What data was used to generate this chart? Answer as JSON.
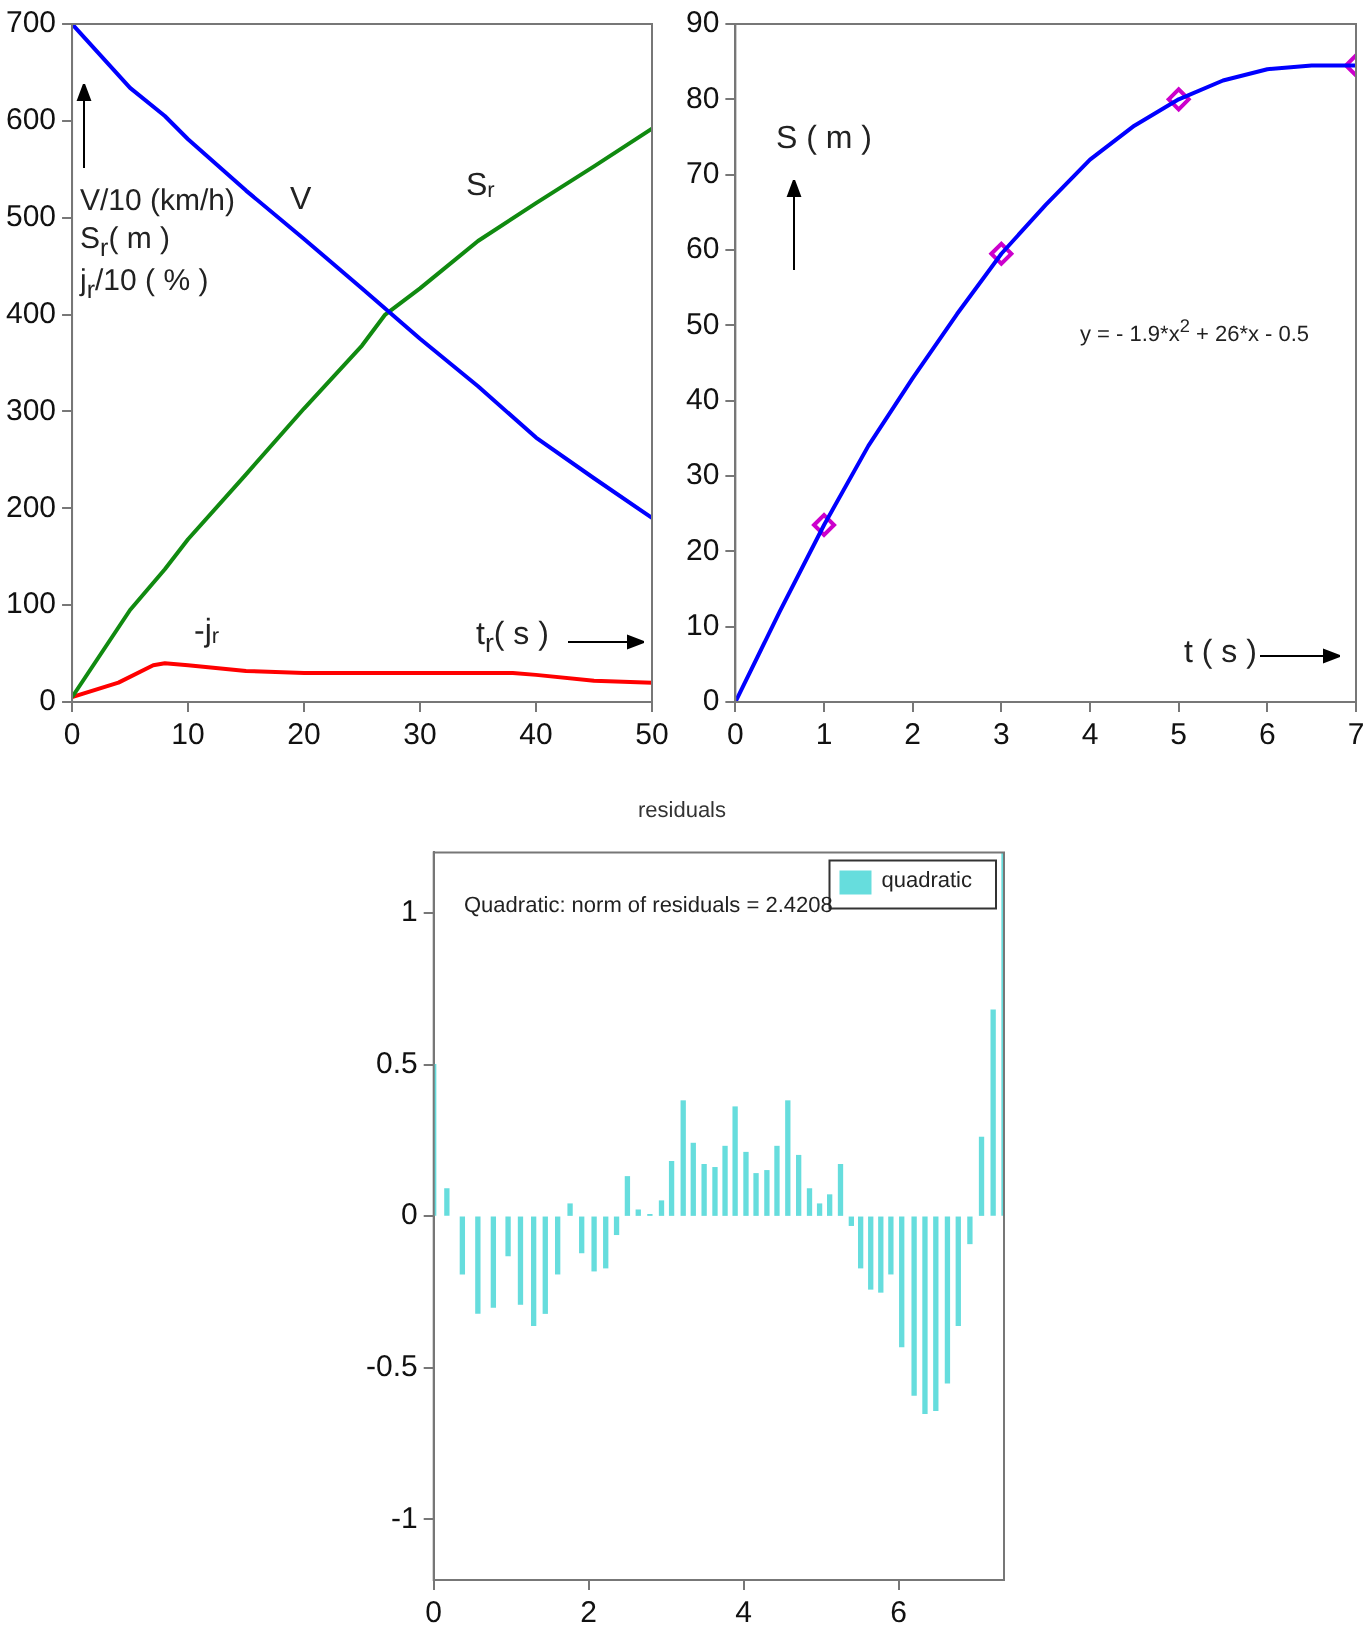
{
  "chart_data": [
    {
      "type": "line",
      "xlabel": "t$_{r}$( s )",
      "ylabel": "V/10 (km/h)\nS$_{r}$( m )\nj$_{r}$/10 ( % )",
      "xlim": [
        0,
        50
      ],
      "xticks": [
        0,
        10,
        20,
        30,
        40,
        50
      ],
      "ylim": [
        0,
        700
      ],
      "yticks": [
        0,
        100,
        200,
        300,
        400,
        500,
        600,
        700
      ],
      "grid": false,
      "marker": "none",
      "line_style": "solid",
      "series": [
        {
          "name": "V",
          "color": "#0000ff",
          "x": [
            0,
            5,
            8,
            10,
            15,
            20,
            25,
            30,
            35,
            40,
            45,
            50
          ],
          "values": [
            700,
            634,
            605,
            581,
            528,
            478,
            427,
            375,
            326,
            273,
            231,
            190
          ]
        },
        {
          "name": "S$_{r}$",
          "color": "#108a10",
          "x": [
            0,
            5,
            8,
            10,
            15,
            20,
            25,
            27,
            30,
            35,
            40,
            45,
            50
          ],
          "values": [
            5,
            95,
            137,
            168,
            235,
            303,
            368,
            400,
            427,
            476,
            515,
            553,
            592
          ]
        },
        {
          "name": "-j$_{r}$",
          "color": "#ff0000",
          "x": [
            0,
            4,
            7,
            8,
            10,
            15,
            20,
            30,
            38,
            40,
            45,
            50
          ],
          "values": [
            5,
            20,
            38,
            40,
            38,
            32,
            30,
            30,
            30,
            28,
            22,
            20
          ]
        }
      ]
    },
    {
      "type": "line",
      "xlabel": "t ( s )",
      "ylabel": "S ( m )",
      "annotations": [
        "y = - 1.9*x$^{2}$ + 26*x - 0.5"
      ],
      "xlim": [
        0,
        7
      ],
      "xticks": [
        0,
        1,
        2,
        3,
        4,
        5,
        6,
        7
      ],
      "ylim": [
        0,
        90
      ],
      "yticks": [
        0,
        10,
        20,
        30,
        40,
        50,
        60,
        70,
        80,
        90
      ],
      "grid": false,
      "series": [
        {
          "color": "#0000ff",
          "marker": "none",
          "x": [
            0,
            0.5,
            1,
            1.5,
            2,
            2.5,
            3,
            3.5,
            4,
            4.5,
            5,
            5.5,
            6,
            6.5,
            7
          ],
          "values": [
            0,
            12,
            23.5,
            34,
            43,
            51.5,
            59.5,
            66,
            72,
            76.5,
            80,
            82.5,
            84,
            84.5,
            84.5
          ]
        },
        {
          "type": "scatter",
          "color": "#cc00cc",
          "marker": "diamond",
          "x": [
            1,
            3,
            5,
            7
          ],
          "values": [
            23.5,
            59.5,
            80,
            84.5
          ]
        }
      ]
    },
    {
      "type": "bar",
      "title": "residuals",
      "annotations": [
        "Quadratic: norm of residuals = 2.4208"
      ],
      "legend": "top right",
      "grid": false,
      "xlim": [
        0,
        7.36
      ],
      "xticks": [
        0,
        2,
        4,
        6
      ],
      "ylim": [
        -1.2,
        1.2
      ],
      "yticks": [
        -1,
        -0.5,
        0,
        0.5,
        1
      ],
      "x": [
        0,
        0.17,
        0.37,
        0.57,
        0.77,
        0.96,
        1.12,
        1.29,
        1.44,
        1.6,
        1.76,
        1.91,
        2.07,
        2.22,
        2.36,
        2.5,
        2.64,
        2.79,
        2.94,
        3.07,
        3.22,
        3.35,
        3.49,
        3.63,
        3.76,
        3.89,
        4.03,
        4.16,
        4.3,
        4.43,
        4.57,
        4.71,
        4.85,
        4.98,
        5.11,
        5.25,
        5.39,
        5.51,
        5.64,
        5.77,
        5.9,
        6.04,
        6.2,
        6.34,
        6.48,
        6.63,
        6.77,
        6.92,
        7.07,
        7.22,
        7.36
      ],
      "series": [
        {
          "name": "quadratic",
          "color": "#66dddd",
          "values": [
            0.5,
            0.09,
            -0.19,
            -0.32,
            -0.3,
            -0.13,
            -0.29,
            -0.36,
            -0.32,
            -0.19,
            0.04,
            -0.12,
            -0.18,
            -0.17,
            -0.06,
            0.13,
            0.02,
            0.005,
            0.05,
            0.18,
            0.38,
            0.24,
            0.17,
            0.16,
            0.23,
            0.36,
            0.21,
            0.14,
            0.15,
            0.23,
            0.38,
            0.2,
            0.09,
            0.04,
            0.07,
            0.17,
            -0.03,
            -0.17,
            -0.24,
            -0.25,
            -0.19,
            -0.43,
            -0.59,
            -0.65,
            -0.64,
            -0.55,
            -0.36,
            -0.09,
            0.26,
            0.68,
            1.2
          ]
        }
      ]
    }
  ]
}
